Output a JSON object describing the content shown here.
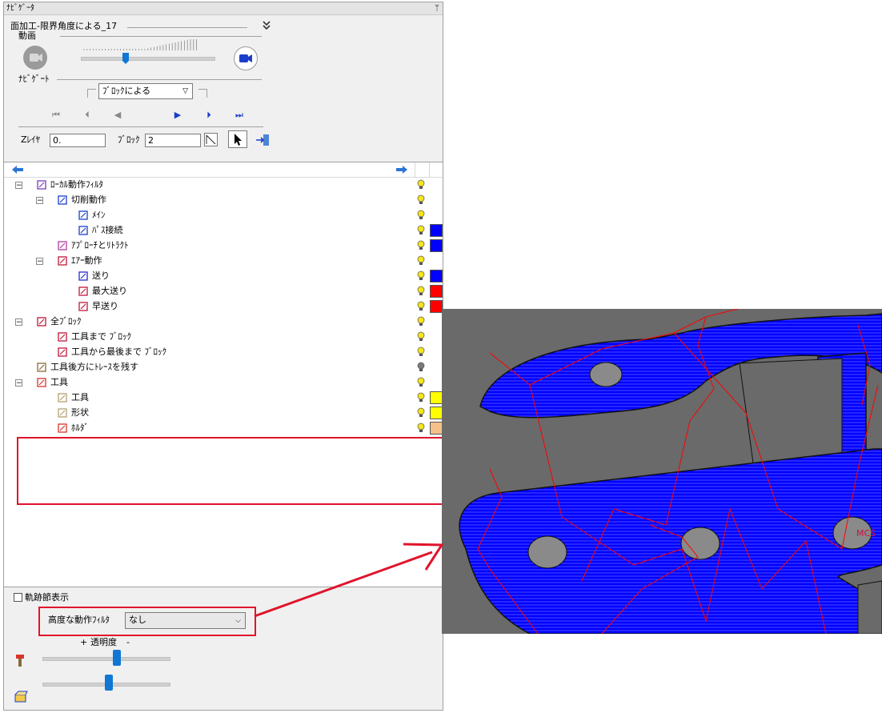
{
  "panel": {
    "title": "ﾅﾋﾞｹﾞｰﾀ",
    "pin_glyph": "ᛘ",
    "operation": "面加工-限界角度による_17",
    "section_animation": "動画",
    "section_navigate": "ﾅﾋﾞｹﾞｰﾄ",
    "navigate_mode": "ﾌﾞﾛｯｸによる",
    "z_layer_label": "Zﾚｲﾔ",
    "z_layer_value": "0.",
    "block_label": "ﾌﾞﾛｯｸ",
    "block_value": "2"
  },
  "tree": [
    {
      "label": "ﾛｰｶﾙ動作ﾌｨﾙﾀ",
      "depth": 0,
      "expander": "−",
      "icon": "local-filter-icon",
      "bulb": "yellow",
      "swatch": ""
    },
    {
      "label": "切削動作",
      "depth": 1,
      "expander": "−",
      "icon": "cut-motion-icon",
      "bulb": "yellow",
      "swatch": ""
    },
    {
      "label": "ﾒｲﾝ",
      "depth": 2,
      "expander": "",
      "icon": "main-motion-icon",
      "bulb": "yellow",
      "swatch": ""
    },
    {
      "label": "ﾊﾟｽ接続",
      "depth": 2,
      "expander": "",
      "icon": "path-link-icon",
      "bulb": "yellow",
      "swatch": "#0000ff"
    },
    {
      "label": "ｱﾌﾟﾛｰﾁとﾘﾄﾗｸﾄ",
      "depth": 1,
      "expander": "",
      "icon": "approach-retract-icon",
      "bulb": "yellow",
      "swatch": "#0000ff"
    },
    {
      "label": "ｴｱｰ動作",
      "depth": 1,
      "expander": "−",
      "icon": "air-motion-icon",
      "bulb": "yellow",
      "swatch": ""
    },
    {
      "label": "送り",
      "depth": 2,
      "expander": "",
      "icon": "feed-icon",
      "bulb": "yellow",
      "swatch": "#0000ff"
    },
    {
      "label": "最大送り",
      "depth": 2,
      "expander": "",
      "icon": "max-feed-icon",
      "bulb": "yellow",
      "swatch": "#ff0000"
    },
    {
      "label": "早送り",
      "depth": 2,
      "expander": "",
      "icon": "rapid-icon",
      "bulb": "yellow",
      "swatch": "#ff0000"
    },
    {
      "label": "全ﾌﾞﾛｯｸ",
      "depth": 0,
      "expander": "−",
      "icon": "all-blocks-icon",
      "bulb": "yellow",
      "swatch": ""
    },
    {
      "label": "工具まで ﾌﾞﾛｯｸ",
      "depth": 1,
      "expander": "",
      "icon": "to-tool-icon",
      "bulb": "yellow",
      "swatch": ""
    },
    {
      "label": "工具から最後まで ﾌﾞﾛｯｸ",
      "depth": 1,
      "expander": "",
      "icon": "tool-to-end-icon",
      "bulb": "yellow",
      "swatch": ""
    },
    {
      "label": "工具後方にﾄﾚｰｽを残す",
      "depth": 0,
      "expander": "",
      "icon": "trace-icon",
      "bulb": "gray",
      "swatch": ""
    },
    {
      "label": "工具",
      "depth": 0,
      "expander": "−",
      "icon": "tool-icon",
      "bulb": "yellow",
      "swatch": ""
    },
    {
      "label": "工具",
      "depth": 1,
      "expander": "",
      "icon": "tool-body-icon",
      "bulb": "yellow",
      "swatch": "#ffff00"
    },
    {
      "label": "形状",
      "depth": 1,
      "expander": "",
      "icon": "shape-icon",
      "bulb": "yellow",
      "swatch": "#ffff00"
    },
    {
      "label": "ﾎﾙﾀﾞ",
      "depth": 1,
      "expander": "",
      "icon": "holder-icon",
      "bulb": "yellow",
      "swatch": "#f5c08a"
    }
  ],
  "bottom": {
    "checkbox_label": "軌跡節表示",
    "checkbox_checked": false,
    "filter_label": "高度な動作ﾌｨﾙﾀ",
    "filter_value": "なし",
    "transparency_label": "透明度",
    "plus": "+",
    "minus": "-",
    "slider_tool_level": 0.5,
    "slider_stock_level": 0.5
  },
  "viewport": {
    "wcs_label": "MCS"
  },
  "colors": {
    "highlight": "#e0142c",
    "toolpath_blue": "#0000ff",
    "rapid_red": "#ff0000",
    "bg_gray": "#6a6a6a"
  }
}
